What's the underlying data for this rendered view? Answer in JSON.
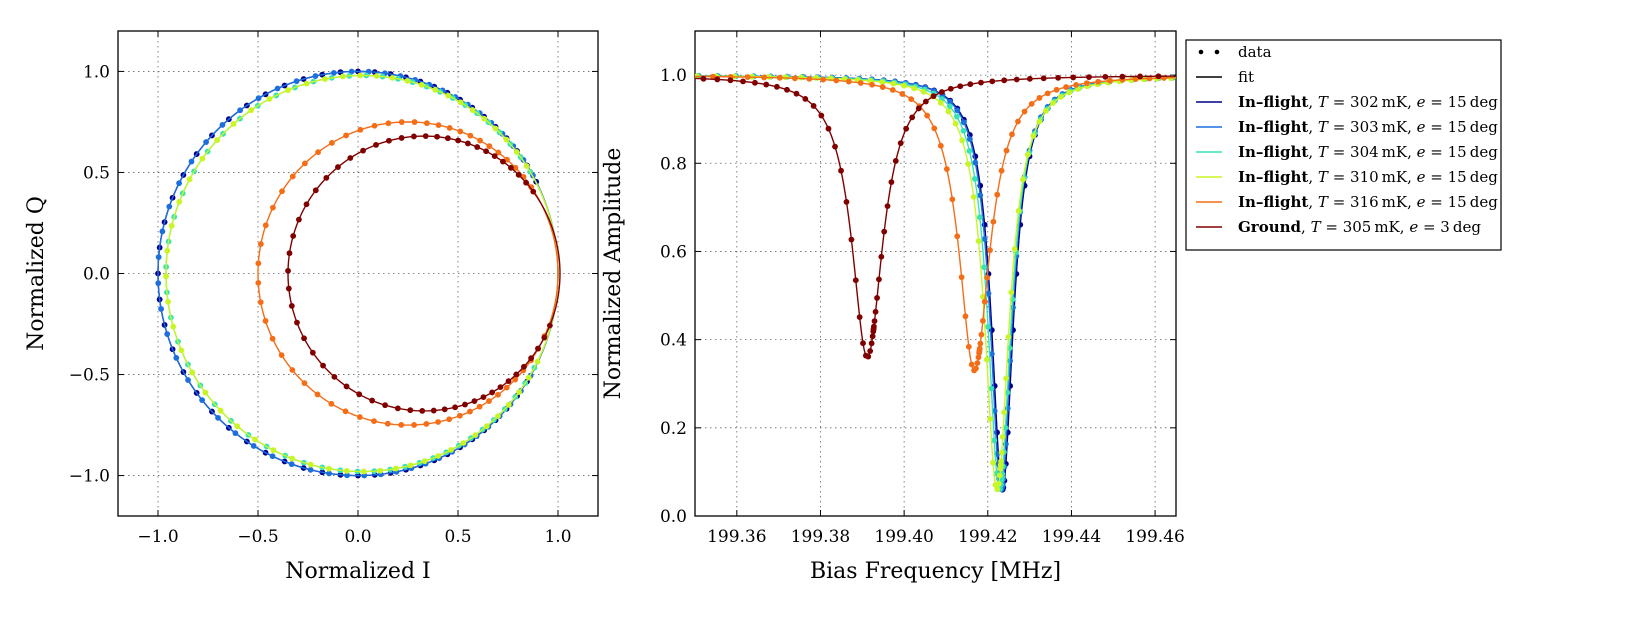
{
  "chart_data": [
    {
      "type": "scatter",
      "xlabel": "Normalized I",
      "ylabel": "Normalized Q",
      "xlim": [
        -1.2,
        1.2
      ],
      "ylim": [
        -1.2,
        1.2
      ],
      "x_ticks": [
        -1.0,
        -0.5,
        0.0,
        0.5,
        1.0
      ],
      "y_ticks": [
        -1.0,
        -0.5,
        0.0,
        0.5,
        1.0
      ],
      "x_tick_labels": [
        "−1.0",
        "−0.5",
        "0.0",
        "0.5",
        "1.0"
      ],
      "y_tick_labels": [
        "−1.0",
        "−0.5",
        "0.0",
        "0.5",
        "1.0"
      ],
      "grid": true,
      "series": [
        {
          "name": "In–flight, T = 302 mK, e = 15 deg",
          "color": "#00008b",
          "circle_center": [
            0.0,
            0.0
          ],
          "radius": 1.0
        },
        {
          "name": "In–flight, T = 303 mK, e = 15 deg",
          "color": "#1c6fdd",
          "circle_center": [
            0.0,
            0.0
          ],
          "radius": 1.0
        },
        {
          "name": "In–flight, T = 304 mK, e = 15 deg",
          "color": "#38e2b8",
          "circle_center": [
            0.02,
            0.0
          ],
          "radius": 0.98
        },
        {
          "name": "In–flight, T = 310 mK, e = 15 deg",
          "color": "#c8f526",
          "circle_center": [
            0.02,
            0.0
          ],
          "radius": 0.98
        },
        {
          "name": "In–flight, T = 316 mK, e = 15 deg",
          "color": "#f46d17",
          "circle_center": [
            0.25,
            0.0
          ],
          "radius": 0.75
        },
        {
          "name": "Ground, T = 305 mK, e = 3 deg",
          "color": "#800000",
          "circle_center": [
            0.33,
            0.0
          ],
          "radius": 0.68
        }
      ]
    },
    {
      "type": "line",
      "xlabel": "Bias Frequency [MHz]",
      "ylabel": "Normalized Amplitude",
      "xlim": [
        199.35,
        199.465
      ],
      "ylim": [
        0.0,
        1.1
      ],
      "x_ticks": [
        199.36,
        199.38,
        199.4,
        199.42,
        199.44,
        199.46
      ],
      "y_ticks": [
        0.0,
        0.2,
        0.4,
        0.6,
        0.8,
        1.0
      ],
      "x_tick_labels": [
        "199.36",
        "199.38",
        "199.40",
        "199.42",
        "199.44",
        "199.46"
      ],
      "y_tick_labels": [
        "0.0",
        "0.2",
        "0.4",
        "0.6",
        "0.8",
        "1.0"
      ],
      "grid": true,
      "legend_position": "outside-right",
      "series": [
        {
          "name": "In–flight, T = 302 mK, e = 15 deg",
          "color": "#00008b",
          "resonance_freq": 199.4235,
          "min_amplitude": 0.06,
          "half_width": 0.0032
        },
        {
          "name": "In–flight, T = 303 mK, e = 15 deg",
          "color": "#1c6fdd",
          "resonance_freq": 199.4232,
          "min_amplitude": 0.06,
          "half_width": 0.0032
        },
        {
          "name": "In–flight, T = 304 mK, e = 15 deg",
          "color": "#38e2b8",
          "resonance_freq": 199.4228,
          "min_amplitude": 0.06,
          "half_width": 0.0034
        },
        {
          "name": "In–flight, T = 310 mK, e = 15 deg",
          "color": "#c8f526",
          "resonance_freq": 199.4222,
          "min_amplitude": 0.06,
          "half_width": 0.0036
        },
        {
          "name": "In–flight, T = 316 mK, e = 15 deg",
          "color": "#f46d17",
          "resonance_freq": 199.4168,
          "min_amplitude": 0.33,
          "half_width": 0.0045
        },
        {
          "name": "Ground, T = 305 mK, e = 3 deg",
          "color": "#800000",
          "resonance_freq": 199.3912,
          "min_amplitude": 0.36,
          "half_width": 0.0045
        }
      ]
    }
  ],
  "legend": {
    "data_label": "data",
    "fit_label": "fit",
    "entries": [
      {
        "prefix": "In–flight",
        "temperature": "302",
        "temp_unit": "mK",
        "elevation": "15",
        "elev_unit": "deg",
        "color": "#00008b"
      },
      {
        "prefix": "In–flight",
        "temperature": "303",
        "temp_unit": "mK",
        "elevation": "15",
        "elev_unit": "deg",
        "color": "#1c6fdd"
      },
      {
        "prefix": "In–flight",
        "temperature": "304",
        "temp_unit": "mK",
        "elevation": "15",
        "elev_unit": "deg",
        "color": "#38e2b8"
      },
      {
        "prefix": "In–flight",
        "temperature": "310",
        "temp_unit": "mK",
        "elevation": "15",
        "elev_unit": "deg",
        "color": "#c8f526"
      },
      {
        "prefix": "In–flight",
        "temperature": "316",
        "temp_unit": "mK",
        "elevation": "15",
        "elev_unit": "deg",
        "color": "#f46d17"
      },
      {
        "prefix": "Ground",
        "temperature": "305",
        "temp_unit": "mK",
        "elevation": "3",
        "elev_unit": "deg",
        "color": "#800000"
      }
    ]
  }
}
